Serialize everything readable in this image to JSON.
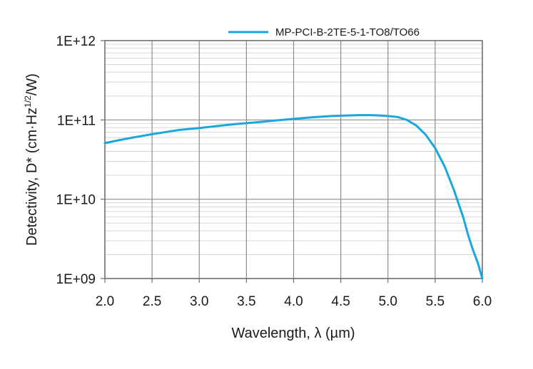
{
  "chart_data": {
    "type": "line",
    "title": "",
    "xlabel": "Wavelength, λ (µm)",
    "ylabel_prefix": "Detectivity, D* (cm·Hz",
    "ylabel_sup": "1/2",
    "ylabel_suffix": "/W)",
    "xlim": [
      2.0,
      6.0
    ],
    "ylim": [
      1000000000.0,
      1000000000000.0
    ],
    "yscale": "log",
    "grid": true,
    "legend_position": "top-right",
    "x_ticks": [
      {
        "value": 2.0,
        "label": "2.0"
      },
      {
        "value": 2.5,
        "label": "2.5"
      },
      {
        "value": 3.0,
        "label": "3.0"
      },
      {
        "value": 3.5,
        "label": "3.5"
      },
      {
        "value": 4.0,
        "label": "4.0"
      },
      {
        "value": 4.5,
        "label": "4.5"
      },
      {
        "value": 5.0,
        "label": "5.0"
      },
      {
        "value": 5.5,
        "label": "5.5"
      },
      {
        "value": 6.0,
        "label": "6.0"
      }
    ],
    "y_ticks": [
      {
        "value": 1000000000.0,
        "label": "1E+09"
      },
      {
        "value": 10000000000.0,
        "label": "1E+10"
      },
      {
        "value": 100000000000.0,
        "label": "1E+11"
      },
      {
        "value": 1000000000000.0,
        "label": "1E+12"
      }
    ],
    "series": [
      {
        "name": "MP-PCI-B-2TE-5-1-TO8/TO66",
        "color": "#1aa7e0",
        "x": [
          2.0,
          2.1,
          2.2,
          2.3,
          2.4,
          2.5,
          2.6,
          2.7,
          2.8,
          2.9,
          3.0,
          3.2,
          3.4,
          3.6,
          3.8,
          4.0,
          4.2,
          4.4,
          4.6,
          4.7,
          4.8,
          4.9,
          5.0,
          5.1,
          5.2,
          5.3,
          5.4,
          5.5,
          5.6,
          5.7,
          5.8,
          5.85,
          5.9,
          5.95,
          6.0
        ],
        "y": [
          51000000000.0,
          54000000000.0,
          57000000000.0,
          60000000000.0,
          63000000000.0,
          66000000000.0,
          69000000000.0,
          72000000000.0,
          75000000000.0,
          77000000000.0,
          79000000000.0,
          84000000000.0,
          89000000000.0,
          93000000000.0,
          98000000000.0,
          103000000000.0,
          108000000000.0,
          112000000000.0,
          114000000000.0,
          115000000000.0,
          115000000000.0,
          114000000000.0,
          112000000000.0,
          109000000000.0,
          100000000000.0,
          85000000000.0,
          65000000000.0,
          44000000000.0,
          26000000000.0,
          13000000000.0,
          5800000000.0,
          3500000000.0,
          2300000000.0,
          1600000000.0,
          1000000000.0
        ]
      }
    ]
  }
}
